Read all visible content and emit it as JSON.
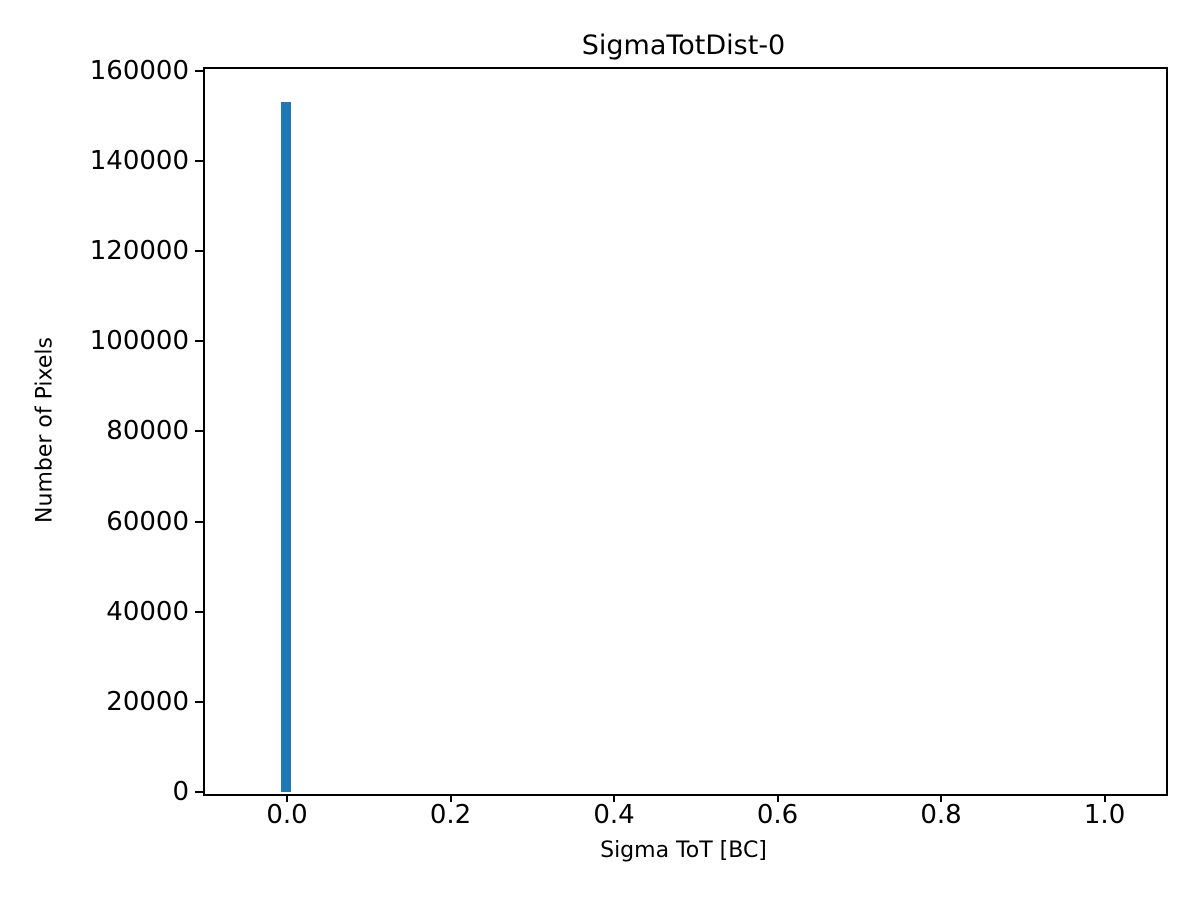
{
  "chart_data": {
    "type": "bar",
    "title": "SigmaTotDist-0",
    "xlabel": "Sigma ToT [BC]",
    "ylabel": "Number of Pixels",
    "xlim": [
      -0.1028,
      1.0727
    ],
    "ylim": [
      0,
      160887
    ],
    "xticks": [
      0.0,
      0.2,
      0.4,
      0.6,
      0.8,
      1.0
    ],
    "xtick_labels": [
      "0.0",
      "0.2",
      "0.4",
      "0.6",
      "0.8",
      "1.0"
    ],
    "yticks": [
      0,
      20000,
      40000,
      60000,
      80000,
      100000,
      120000,
      140000,
      160000
    ],
    "ytick_labels": [
      "0",
      "20000",
      "40000",
      "60000",
      "80000",
      "100000",
      "120000",
      "140000",
      "160000"
    ],
    "grid": false,
    "legend": null,
    "bar_color": "#1f77b4",
    "bars": [
      {
        "x": -0.0073,
        "width": 0.0122,
        "value": 153200
      }
    ]
  }
}
